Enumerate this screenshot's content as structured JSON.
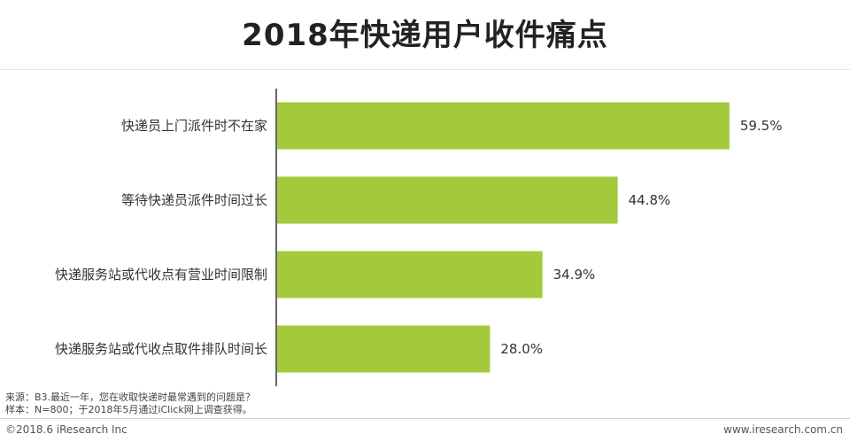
{
  "title": "2018年快递用户收件痛点",
  "chart_data": {
    "type": "bar",
    "orientation": "horizontal",
    "categories": [
      "快递员上门派件时不在家",
      "等待快递员派件时间过长",
      "快递服务站或代收点有营业时间限制",
      "快递服务站或代收点取件排队时间长"
    ],
    "values": [
      59.5,
      44.8,
      34.9,
      28.0
    ],
    "value_labels": [
      "59.5%",
      "44.8%",
      "34.9%",
      "28.0%"
    ],
    "bar_color": "#a4c93b",
    "xlim": [
      0,
      60.8
    ],
    "grid": false,
    "legend": "none"
  },
  "notes": {
    "line1": "来源：B3.最近一年，您在收取快递时最常遇到的问题是？",
    "line2": "样本：N=800；于2018年5月通过iClick网上调查获得。"
  },
  "footer": {
    "copyright": "©2018.6 iResearch Inc",
    "url": "www.iresearch.com.cn"
  }
}
